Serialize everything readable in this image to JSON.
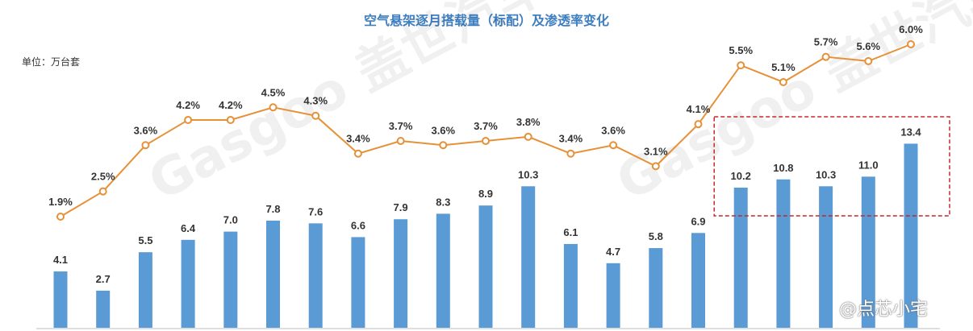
{
  "chart_data": {
    "type": "bar",
    "title": "空气悬架逐月搭载量（标配）及渗透率变化",
    "unit_label": "单位：万台套",
    "series": [
      {
        "type": "bar",
        "values": [
          4.1,
          2.7,
          5.5,
          6.4,
          7.0,
          7.8,
          7.6,
          6.6,
          7.9,
          8.3,
          8.9,
          10.3,
          6.1,
          4.7,
          5.8,
          6.9,
          10.2,
          10.8,
          10.3,
          11.0,
          13.4
        ],
        "labels": [
          "4.1",
          "2.7",
          "5.5",
          "6.4",
          "7.0",
          "7.8",
          "7.6",
          "6.6",
          "7.9",
          "8.3",
          "8.9",
          "10.3",
          "6.1",
          "4.7",
          "5.8",
          "6.9",
          "10.2",
          "10.8",
          "10.3",
          "11.0",
          "13.4"
        ],
        "color": "#5b9bd5"
      },
      {
        "type": "line",
        "values": [
          1.9,
          2.5,
          3.6,
          4.2,
          4.2,
          4.5,
          4.3,
          3.4,
          3.7,
          3.6,
          3.7,
          3.8,
          3.4,
          3.6,
          3.1,
          4.1,
          5.5,
          5.1,
          5.7,
          5.6,
          6.0
        ],
        "labels": [
          "1.9%",
          "2.5%",
          "3.6%",
          "4.2%",
          "4.2%",
          "4.5%",
          "4.3%",
          "3.4%",
          "3.7%",
          "3.6%",
          "3.7%",
          "3.8%",
          "3.4%",
          "3.6%",
          "3.1%",
          "4.1%",
          "5.5%",
          "5.1%",
          "5.7%",
          "5.6%",
          "6.0%"
        ],
        "color": "#e69138"
      }
    ],
    "highlight": {
      "from_index": 16,
      "to_index": 20,
      "style": "dashed",
      "color": "#c0282e"
    },
    "watermark": "Gasgoo 盖世汽车研究院",
    "handle": "@点芯小宅"
  }
}
